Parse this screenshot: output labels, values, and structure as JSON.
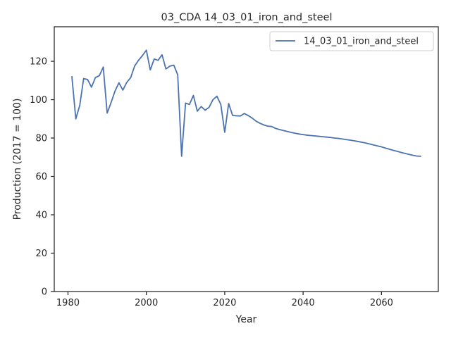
{
  "chart_data": {
    "type": "line",
    "title": "03_CDA 14_03_01_iron_and_steel",
    "xlabel": "Year",
    "ylabel": "Production (2017 = 100)",
    "xlim": [
      1976.5,
      2074.5
    ],
    "ylim": [
      0,
      138
    ],
    "xticks": [
      1980,
      2000,
      2020,
      2040,
      2060
    ],
    "yticks": [
      0,
      20,
      40,
      60,
      80,
      100,
      120
    ],
    "grid": false,
    "legend_position": "top-right",
    "line_color": "#4c72b0",
    "series": [
      {
        "name": "14_03_01_iron_and_steel",
        "x": [
          1981,
          1982,
          1983,
          1984,
          1985,
          1986,
          1987,
          1988,
          1989,
          1990,
          1991,
          1992,
          1993,
          1994,
          1995,
          1996,
          1997,
          1998,
          1999,
          2000,
          2001,
          2002,
          2003,
          2004,
          2005,
          2006,
          2007,
          2008,
          2009,
          2010,
          2011,
          2012,
          2013,
          2014,
          2015,
          2016,
          2017,
          2018,
          2019,
          2020,
          2021,
          2022,
          2023,
          2024,
          2025,
          2026,
          2027,
          2028,
          2029,
          2030,
          2031,
          2032,
          2033,
          2034,
          2035,
          2036,
          2037,
          2038,
          2039,
          2040,
          2041,
          2042,
          2043,
          2044,
          2045,
          2046,
          2047,
          2048,
          2049,
          2050,
          2051,
          2052,
          2053,
          2054,
          2055,
          2056,
          2057,
          2058,
          2059,
          2060,
          2061,
          2062,
          2063,
          2064,
          2065,
          2066,
          2067,
          2068,
          2069,
          2070
        ],
        "y": [
          112,
          90,
          97,
          111,
          110.5,
          106.5,
          111.5,
          112.5,
          117,
          93,
          98.5,
          104.5,
          108.8,
          105,
          109,
          111.5,
          117.5,
          120.5,
          123,
          125.8,
          115.5,
          121.2,
          120.5,
          123.4,
          116,
          117.5,
          118,
          113,
          70.5,
          98.2,
          97.5,
          102.2,
          94,
          96.4,
          94.5,
          96,
          100,
          101.8,
          97.5,
          83,
          98,
          91.8,
          91.6,
          91.5,
          92.8,
          91.7,
          90.4,
          88.8,
          87.7,
          86.8,
          86.2,
          86.0,
          85.0,
          84.4,
          83.9,
          83.4,
          82.9,
          82.5,
          82.1,
          81.8,
          81.5,
          81.3,
          81.1,
          80.9,
          80.7,
          80.5,
          80.3,
          80.0,
          79.8,
          79.5,
          79.2,
          78.9,
          78.6,
          78.2,
          77.8,
          77.4,
          76.9,
          76.4,
          75.9,
          75.4,
          74.8,
          74.2,
          73.6,
          73.1,
          72.5,
          72.0,
          71.5,
          71.0,
          70.6,
          70.5
        ]
      }
    ]
  }
}
